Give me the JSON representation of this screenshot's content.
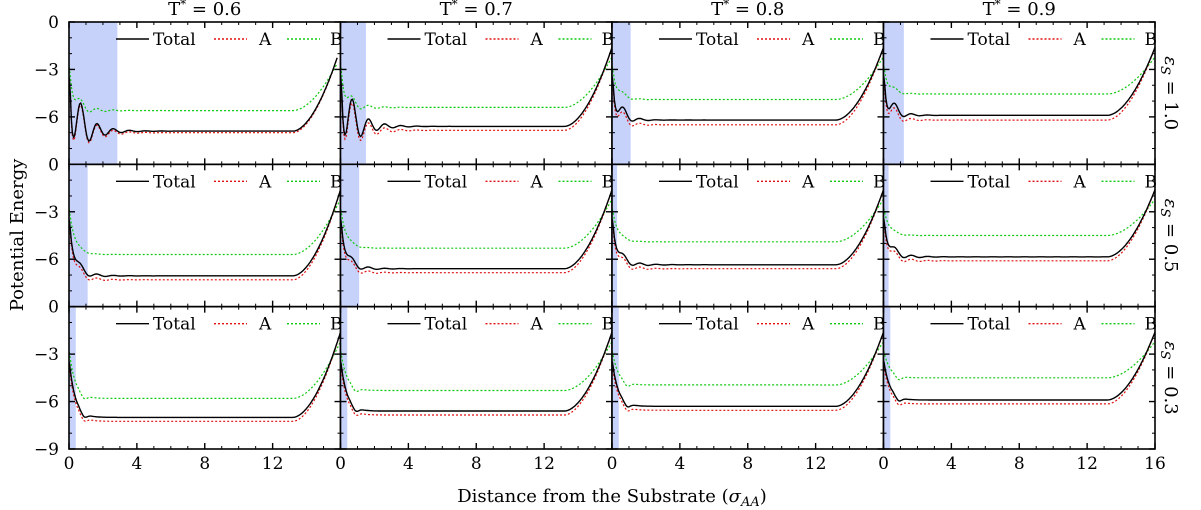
{
  "chart_data": {
    "type": "line",
    "xlabel": "Distance from the Substrate (σ_AA)",
    "ylabel": "Potential Energy",
    "xlim": [
      0,
      16
    ],
    "ylim": [
      -9,
      0
    ],
    "x_ticks": [
      "0",
      "4",
      "8",
      "12",
      "16"
    ],
    "y_ticks": [
      "0",
      "−3",
      "−6",
      "−9"
    ],
    "columns": [
      {
        "label_base": "T",
        "label_sup": "*",
        "label_value": "= 0.6"
      },
      {
        "label_base": "T",
        "label_sup": "*",
        "label_value": "= 0.7"
      },
      {
        "label_base": "T",
        "label_sup": "*",
        "label_value": "= 0.8"
      },
      {
        "label_base": "T",
        "label_sup": "*",
        "label_value": "= 0.9"
      }
    ],
    "rows": [
      {
        "label": "εS = 1.0",
        "label_sym": "ε",
        "label_sub": "S",
        "label_value": " = 1.0"
      },
      {
        "label": "εS = 0.5",
        "label_sym": "ε",
        "label_sub": "S",
        "label_value": " = 0.5"
      },
      {
        "label": "εS = 0.3",
        "label_sym": "ε",
        "label_sub": "S",
        "label_value": " = 0.3"
      }
    ],
    "legend": {
      "position": "top",
      "entries": [
        {
          "name": "Total",
          "color": "#000000",
          "style": "solid"
        },
        {
          "name": "A",
          "color": "#e01010",
          "style": "dotted"
        },
        {
          "name": "B",
          "color": "#10c810",
          "style": "dotted"
        }
      ]
    },
    "shade_color": "#c7d2fb",
    "panels": [
      {
        "row": 0,
        "col": 0,
        "shade": [
          0,
          2.85
        ],
        "x_end": 15.8,
        "plateau": {
          "total": -6.9,
          "A": -7.0,
          "B": -5.6
        },
        "oscillation": "strong"
      },
      {
        "row": 0,
        "col": 1,
        "shade": [
          0,
          1.5
        ],
        "x_end": 16,
        "plateau": {
          "total": -6.6,
          "A": -6.85,
          "B": -5.4
        },
        "oscillation": "strong"
      },
      {
        "row": 0,
        "col": 2,
        "shade": [
          0,
          1.1
        ],
        "x_end": 16,
        "plateau": {
          "total": -6.2,
          "A": -6.5,
          "B": -4.9
        },
        "oscillation": "medium"
      },
      {
        "row": 0,
        "col": 3,
        "shade": [
          0,
          1.2
        ],
        "x_end": 16,
        "plateau": {
          "total": -5.9,
          "A": -6.2,
          "B": -4.55
        },
        "oscillation": "medium"
      },
      {
        "row": 1,
        "col": 0,
        "shade": [
          0,
          1.1
        ],
        "x_end": 16,
        "plateau": {
          "total": -7.05,
          "A": -7.3,
          "B": -5.7
        },
        "oscillation": "weak"
      },
      {
        "row": 1,
        "col": 1,
        "shade": [
          0,
          1.1
        ],
        "x_end": 16,
        "plateau": {
          "total": -6.6,
          "A": -6.85,
          "B": -5.3
        },
        "oscillation": "weak"
      },
      {
        "row": 1,
        "col": 2,
        "shade": [
          0,
          0.3
        ],
        "x_end": 16,
        "plateau": {
          "total": -6.35,
          "A": -6.6,
          "B": -4.9
        },
        "oscillation": "weak"
      },
      {
        "row": 1,
        "col": 3,
        "shade": [
          0,
          0.3
        ],
        "x_end": 16,
        "plateau": {
          "total": -5.85,
          "A": -6.1,
          "B": -4.5
        },
        "oscillation": "weak"
      },
      {
        "row": 2,
        "col": 0,
        "shade": [
          0,
          0.4
        ],
        "x_end": 16,
        "plateau": {
          "total": -7.0,
          "A": -7.25,
          "B": -5.8
        },
        "oscillation": "none"
      },
      {
        "row": 2,
        "col": 1,
        "shade": [
          0,
          0.4
        ],
        "x_end": 16,
        "plateau": {
          "total": -6.6,
          "A": -6.85,
          "B": -5.3
        },
        "oscillation": "none"
      },
      {
        "row": 2,
        "col": 2,
        "shade": [
          0,
          0.4
        ],
        "x_end": 16,
        "plateau": {
          "total": -6.3,
          "A": -6.55,
          "B": -4.95
        },
        "oscillation": "none"
      },
      {
        "row": 2,
        "col": 3,
        "shade": [
          0,
          0.4
        ],
        "x_end": 16,
        "plateau": {
          "total": -5.9,
          "A": -6.15,
          "B": -4.5
        },
        "oscillation": "none"
      }
    ]
  }
}
